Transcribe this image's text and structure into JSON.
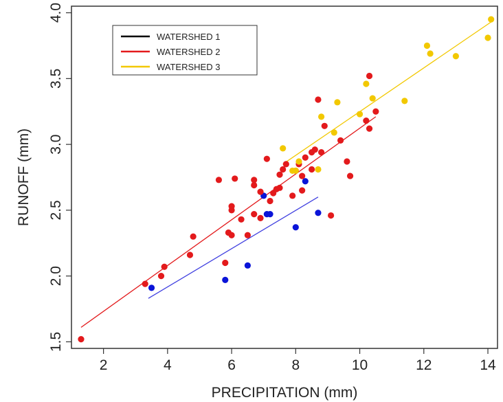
{
  "chart_data": {
    "type": "scatter",
    "title": "",
    "xlabel": "PRECIPITATION (mm)",
    "ylabel": "RUNOFF (mm)",
    "xlim": [
      1.0,
      14.3
    ],
    "ylim": [
      1.45,
      4.05
    ],
    "xticks": [
      2,
      4,
      6,
      8,
      10,
      12,
      14
    ],
    "yticks": [
      1.5,
      2.0,
      2.5,
      3.0,
      3.5,
      4.0
    ],
    "xtick_labels": [
      "2",
      "4",
      "6",
      "8",
      "10",
      "12",
      "14"
    ],
    "ytick_labels": [
      "1.5",
      "2.0",
      "2.5",
      "3.0",
      "3.5",
      "4.0"
    ],
    "legend_position": "top-left",
    "grid": false,
    "series": [
      {
        "name": "WATERSHED 1",
        "legend_color": "#000000",
        "color": "#0a14d8",
        "line_color": "#4040e0",
        "points": [
          [
            3.5,
            1.91
          ],
          [
            5.8,
            1.97
          ],
          [
            6.5,
            2.08
          ],
          [
            7.0,
            2.61
          ],
          [
            7.1,
            2.47
          ],
          [
            7.2,
            2.47
          ],
          [
            8.0,
            2.37
          ],
          [
            8.3,
            2.72
          ],
          [
            8.7,
            2.48
          ]
        ],
        "fit": [
          [
            3.4,
            1.83
          ],
          [
            8.7,
            2.6
          ]
        ]
      },
      {
        "name": "WATERSHED 2",
        "legend_color": "#e31a1c",
        "color": "#e31a1c",
        "line_color": "#e31a1c",
        "points": [
          [
            1.3,
            1.52
          ],
          [
            3.3,
            1.94
          ],
          [
            3.8,
            2.0
          ],
          [
            3.9,
            2.07
          ],
          [
            4.7,
            2.16
          ],
          [
            4.8,
            2.3
          ],
          [
            5.6,
            2.73
          ],
          [
            5.8,
            2.1
          ],
          [
            5.9,
            2.33
          ],
          [
            6.0,
            2.31
          ],
          [
            6.0,
            2.5
          ],
          [
            6.0,
            2.53
          ],
          [
            6.1,
            2.74
          ],
          [
            6.3,
            2.43
          ],
          [
            6.5,
            2.31
          ],
          [
            6.7,
            2.47
          ],
          [
            6.7,
            2.69
          ],
          [
            6.7,
            2.73
          ],
          [
            6.9,
            2.44
          ],
          [
            6.9,
            2.64
          ],
          [
            7.1,
            2.89
          ],
          [
            7.2,
            2.57
          ],
          [
            7.3,
            2.63
          ],
          [
            7.4,
            2.66
          ],
          [
            7.5,
            2.67
          ],
          [
            7.5,
            2.77
          ],
          [
            7.6,
            2.81
          ],
          [
            7.7,
            2.85
          ],
          [
            7.9,
            2.61
          ],
          [
            8.0,
            2.8
          ],
          [
            8.1,
            2.85
          ],
          [
            8.2,
            2.65
          ],
          [
            8.2,
            2.76
          ],
          [
            8.3,
            2.9
          ],
          [
            8.5,
            2.81
          ],
          [
            8.5,
            2.94
          ],
          [
            8.6,
            2.96
          ],
          [
            8.7,
            3.34
          ],
          [
            8.8,
            2.94
          ],
          [
            8.9,
            3.14
          ],
          [
            9.1,
            2.46
          ],
          [
            9.4,
            3.03
          ],
          [
            9.6,
            2.87
          ],
          [
            9.7,
            2.76
          ],
          [
            10.2,
            3.18
          ],
          [
            10.3,
            3.12
          ],
          [
            10.3,
            3.52
          ],
          [
            10.5,
            3.25
          ]
        ],
        "fit": [
          [
            1.3,
            1.61
          ],
          [
            10.5,
            3.21
          ]
        ]
      },
      {
        "name": "WATERSHED 3",
        "legend_color": "#f2c800",
        "color": "#f2c800",
        "line_color": "#f2c800",
        "points": [
          [
            7.6,
            2.97
          ],
          [
            7.9,
            2.8
          ],
          [
            8.0,
            2.8
          ],
          [
            8.1,
            2.87
          ],
          [
            8.7,
            2.81
          ],
          [
            8.8,
            3.21
          ],
          [
            9.2,
            3.09
          ],
          [
            9.3,
            3.32
          ],
          [
            10.0,
            3.23
          ],
          [
            10.2,
            3.46
          ],
          [
            10.4,
            3.35
          ],
          [
            11.4,
            3.33
          ],
          [
            12.1,
            3.75
          ],
          [
            12.2,
            3.69
          ],
          [
            13.0,
            3.67
          ],
          [
            14.0,
            3.81
          ],
          [
            14.1,
            3.95
          ]
        ],
        "fit": [
          [
            7.6,
            2.85
          ],
          [
            14.1,
            3.93
          ]
        ]
      }
    ]
  }
}
